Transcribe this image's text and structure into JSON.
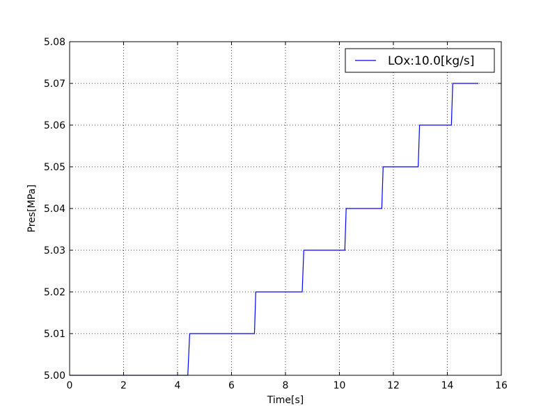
{
  "chart_data": {
    "type": "line",
    "title": "",
    "xlabel": "Time[s]",
    "ylabel": "Pres[MPa]",
    "xlim": [
      0,
      16
    ],
    "ylim": [
      5.0,
      5.08
    ],
    "xticks": [
      0,
      2,
      4,
      6,
      8,
      10,
      12,
      14,
      16
    ],
    "yticks": [
      5.0,
      5.01,
      5.02,
      5.03,
      5.04,
      5.05,
      5.06,
      5.07,
      5.08
    ],
    "xtick_labels": [
      "0",
      "2",
      "4",
      "6",
      "8",
      "10",
      "12",
      "14",
      "16"
    ],
    "ytick_labels": [
      "5.00",
      "5.01",
      "5.02",
      "5.03",
      "5.04",
      "5.05",
      "5.06",
      "5.07",
      "5.08"
    ],
    "grid": true,
    "legend_position": "top-right",
    "series": [
      {
        "name": "LOx:10.0[kg/s]",
        "color": "#0000ff",
        "x": [
          0,
          4.38,
          4.45,
          6.85,
          6.9,
          8.62,
          8.68,
          10.2,
          10.25,
          11.57,
          11.62,
          12.92,
          12.97,
          14.15,
          14.2,
          15.15
        ],
        "y": [
          5.0,
          5.0,
          5.01,
          5.01,
          5.02,
          5.02,
          5.03,
          5.03,
          5.04,
          5.04,
          5.05,
          5.05,
          5.06,
          5.06,
          5.07,
          5.07
        ]
      }
    ]
  }
}
